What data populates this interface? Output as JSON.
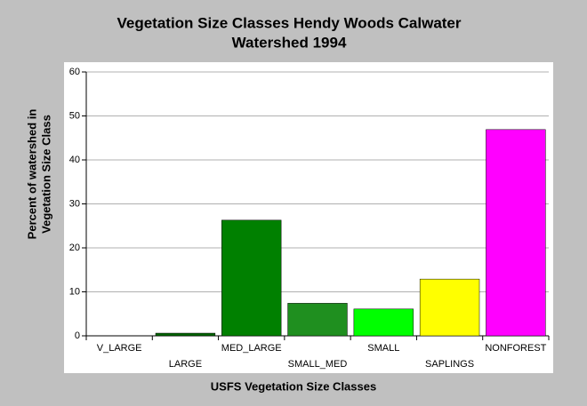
{
  "chart_data": {
    "type": "bar",
    "title": [
      "Vegetation Size Classes Hendy Woods Calwater",
      "Watershed 1994"
    ],
    "y_label": [
      "Percent of watershed in",
      "Vegetation Size Class"
    ],
    "x_label": "USFS Vegetation Size Classes",
    "categories": [
      "V_LARGE",
      "LARGE",
      "MED_LARGE",
      "SMALL_MED",
      "SMALL",
      "SAPLINGS",
      "NONFOREST"
    ],
    "values": [
      0,
      0.6,
      26.3,
      7.4,
      6.1,
      12.9,
      46.9
    ],
    "colors": [
      "#006400",
      "#006400",
      "#008000",
      "#1f8f1f",
      "#00ff00",
      "#ffff00",
      "#ff00ff"
    ],
    "ylim": [
      0,
      60
    ],
    "yticks": [
      0,
      10,
      20,
      30,
      40,
      50,
      60
    ],
    "grid": true
  }
}
